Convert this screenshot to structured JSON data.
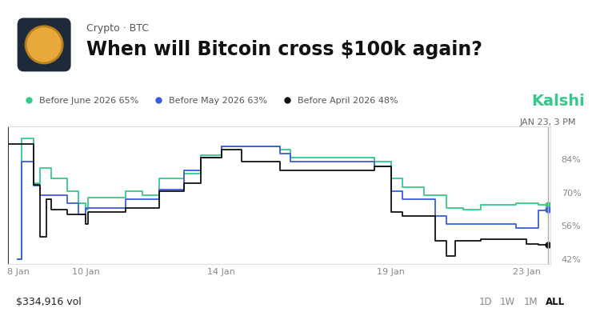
{
  "chart_data": {
    "type": "line",
    "subtitle": "Crypto · BTC",
    "title": "When will Bitcoin cross $100k again?",
    "line_style": "steps",
    "grid": false,
    "legend": "upper left",
    "x": [
      7.74,
      8.0,
      8.11,
      8.46,
      8.66,
      8.85,
      8.99,
      9.45,
      9.78,
      10.0,
      10.07,
      11.18,
      11.67,
      12.16,
      12.9,
      13.39,
      14.0,
      14.6,
      15.74,
      16.03,
      17.6,
      18.51,
      19.0,
      19.34,
      19.98,
      20.3,
      20.63,
      20.9,
      21.14,
      21.66,
      22.2,
      22.69,
      23.0,
      23.36,
      23.625
    ],
    "series": [
      {
        "name": "Before June 2026 65%",
        "color": "#34c98a",
        "values": [
          null,
          42,
          92.8,
          74.2,
          80.5,
          80.5,
          76,
          70.7,
          65.5,
          63,
          68,
          70.7,
          69,
          76,
          78,
          86,
          89.6,
          89.6,
          88.2,
          84.7,
          84.7,
          83,
          76,
          72.5,
          69,
          69,
          63.7,
          63.7,
          63,
          64.8,
          64.8,
          65.5,
          65.5,
          65,
          65
        ]
      },
      {
        "name": "Before May 2026 63%",
        "color": "#3b5bdb",
        "values": [
          null,
          42,
          83,
          73,
          69,
          69,
          69,
          65.5,
          61,
          63.7,
          63.7,
          67.2,
          67.2,
          71.4,
          79.5,
          84.7,
          89.6,
          89.6,
          86.5,
          83,
          83,
          81.2,
          70.7,
          67.2,
          67.2,
          60.2,
          56.7,
          56.7,
          56.7,
          56.7,
          56.7,
          55,
          55,
          62.6,
          63
        ]
      },
      {
        "name": "Before April 2026 48%",
        "color": "#111111",
        "values": [
          90.7,
          90.7,
          90.7,
          73.5,
          51.5,
          67.2,
          63,
          61,
          61,
          56.7,
          62,
          63.7,
          63.7,
          70.7,
          74.2,
          84.7,
          88.2,
          83,
          79.5,
          79.5,
          79.5,
          81.2,
          62,
          60.2,
          60.2,
          49.7,
          43.4,
          49.7,
          49.7,
          50.4,
          50.4,
          50.4,
          48.5,
          48,
          48
        ]
      }
    ],
    "xlim": [
      7.7,
      23.7
    ],
    "xticks": [
      {
        "value": 8,
        "label": "8 Jan"
      },
      {
        "value": 10,
        "label": "10 Jan"
      },
      {
        "value": 14,
        "label": "14 Jan"
      },
      {
        "value": 19,
        "label": "19 Jan"
      },
      {
        "value": 23,
        "label": "23 Jan"
      }
    ],
    "ylim": [
      40,
      98
    ],
    "yticks": [
      {
        "value": 42,
        "label": "42%"
      },
      {
        "value": 56,
        "label": "56%"
      },
      {
        "value": 70,
        "label": "70%"
      },
      {
        "value": 84,
        "label": "84%"
      }
    ],
    "annotations": [
      {
        "x": 23.625,
        "text": "JAN 23, 3 PM"
      }
    ]
  },
  "screen": {
    "brand": "Kalshi",
    "volume": "$334,916 vol",
    "ranges": [
      "1D",
      "1W",
      "1M",
      "ALL"
    ],
    "selected": "ALL"
  }
}
